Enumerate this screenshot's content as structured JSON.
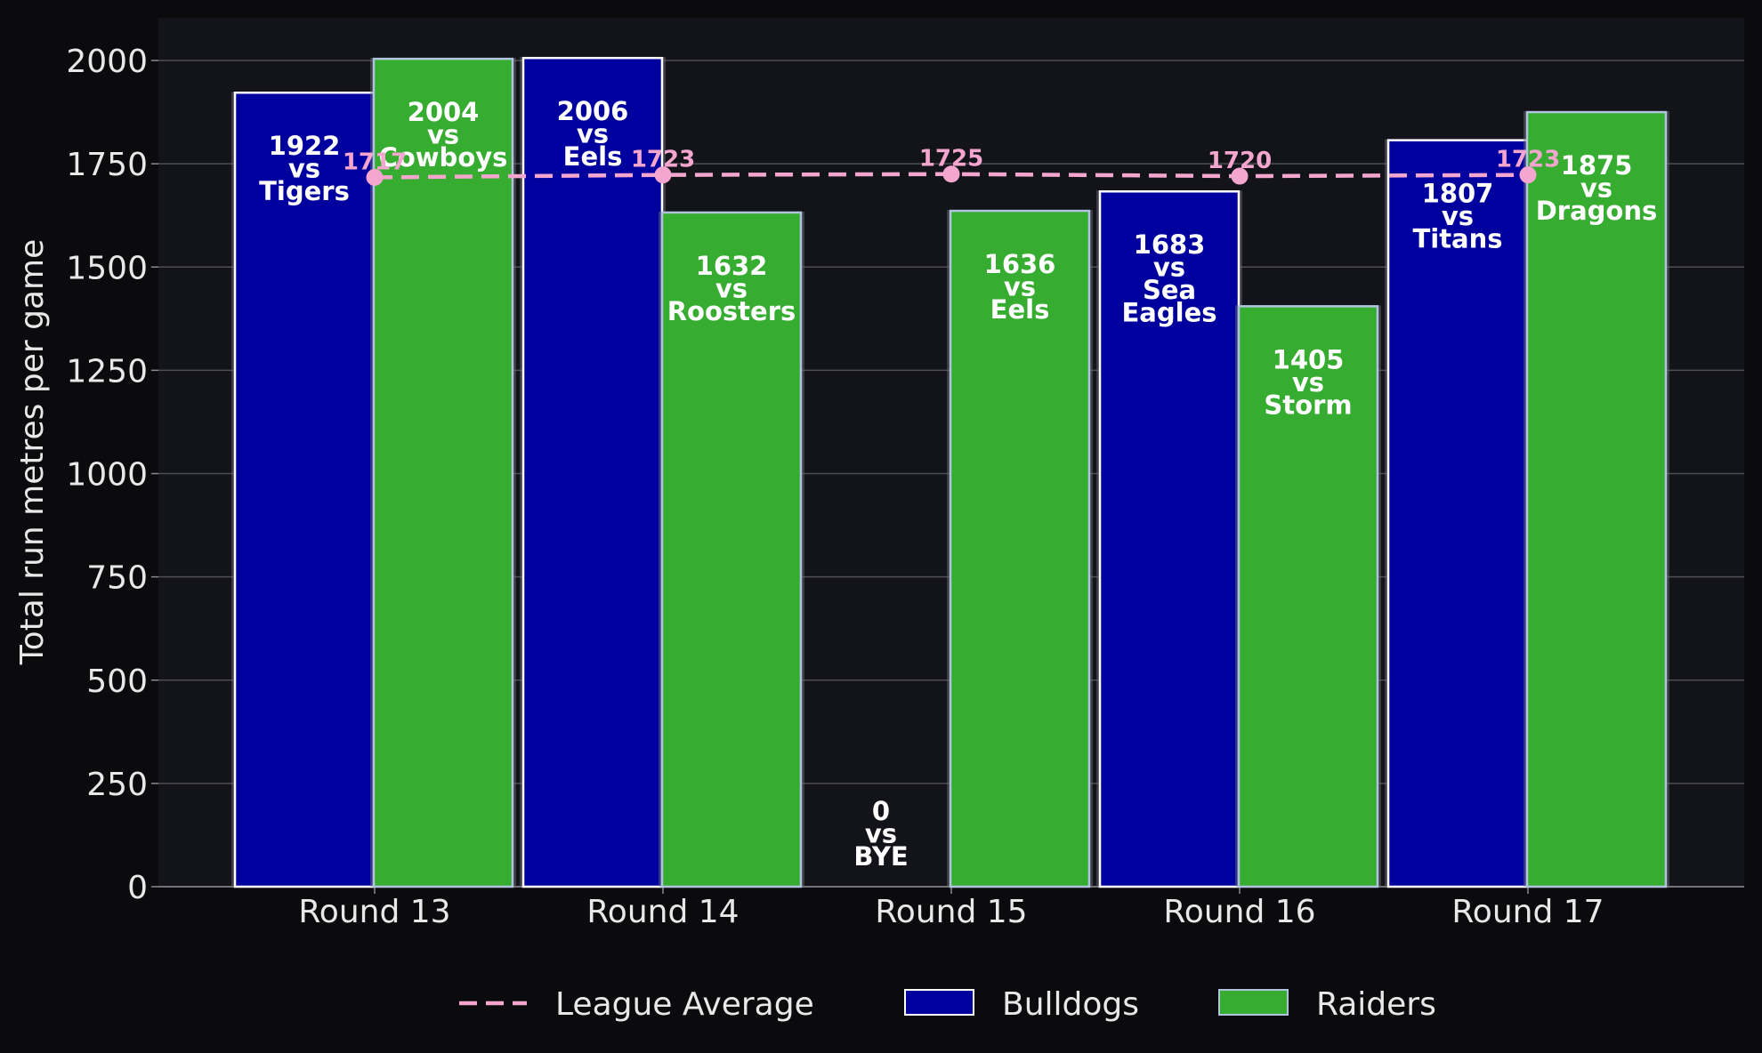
{
  "chart_data": {
    "type": "bar",
    "title": "",
    "xlabel": "",
    "ylabel": "Total run metres per game",
    "ylim": [
      0,
      2100
    ],
    "yticks": [
      0,
      250,
      500,
      750,
      1000,
      1250,
      1500,
      1750,
      2000
    ],
    "categories": [
      "Round 13",
      "Round 14",
      "Round 15",
      "Round 16",
      "Round 17"
    ],
    "grid": "horizontal",
    "legend_position": "bottom-center",
    "series": [
      {
        "name": "Bulldogs",
        "color": "#00009f",
        "edge_color": "#ffffff",
        "values": [
          1922,
          2006,
          0,
          1683,
          1807
        ],
        "labels": [
          [
            "1922",
            "vs",
            "Tigers"
          ],
          [
            "2006",
            "vs",
            "Eels"
          ],
          [
            "0",
            "vs",
            "BYE"
          ],
          [
            "1683",
            "vs",
            "Sea",
            "Eagles"
          ],
          [
            "1807",
            "vs",
            "Titans"
          ]
        ]
      },
      {
        "name": "Raiders",
        "color": "#36ac31",
        "edge_color": "#b0c4de",
        "values": [
          2004,
          1632,
          1636,
          1405,
          1875
        ],
        "labels": [
          [
            "2004",
            "vs",
            "Cowboys"
          ],
          [
            "1632",
            "vs",
            "Roosters"
          ],
          [
            "1636",
            "vs",
            "Eels"
          ],
          [
            "1405",
            "vs",
            "Storm"
          ],
          [
            "1875",
            "vs",
            "Dragons"
          ]
        ]
      }
    ],
    "average_line": {
      "name": "League Average",
      "color": "#f4a6cf",
      "style": "dashed",
      "values": [
        1717,
        1723,
        1725,
        1720,
        1723
      ],
      "labels": [
        "1717",
        "1723",
        "1725",
        "1720",
        "1723"
      ]
    },
    "legend": [
      "League Average",
      "Bulldogs",
      "Raiders"
    ]
  }
}
